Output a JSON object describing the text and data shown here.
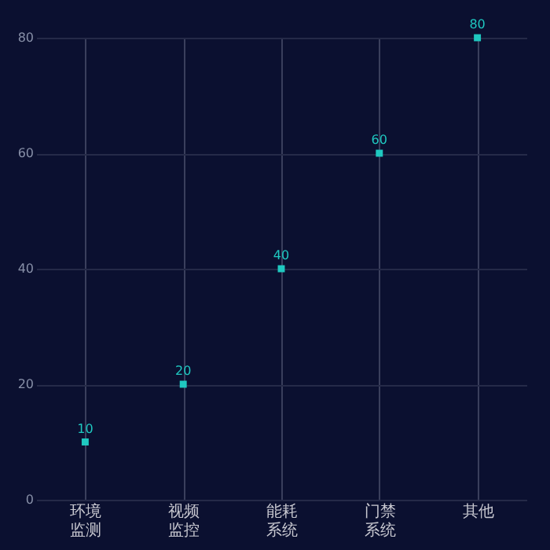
{
  "chart_data": {
    "type": "scatter",
    "categories": [
      "环境监测",
      "视频监控",
      "能耗系统",
      "门禁系统",
      "其他"
    ],
    "series": [
      {
        "color": "#1fc8c0",
        "values": [
          10,
          20,
          40,
          60,
          80
        ]
      }
    ],
    "ylim": [
      0,
      80
    ],
    "yticks": [
      0,
      20,
      40,
      60,
      80
    ],
    "grid": true,
    "marker": "square",
    "data_labels": true,
    "legend": false
  }
}
